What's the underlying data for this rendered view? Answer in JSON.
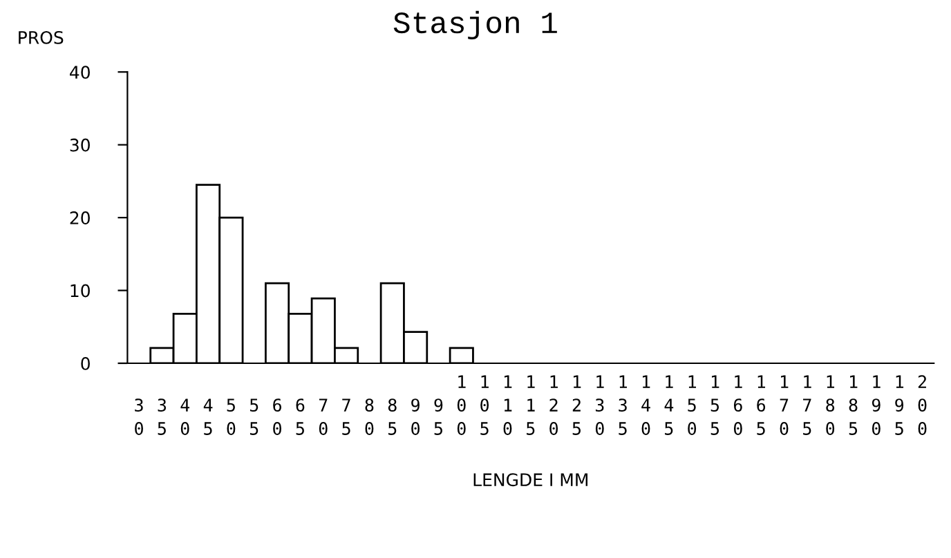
{
  "chart_data": {
    "type": "histogram",
    "title": "Stasjon 1",
    "ylabel": "PROS",
    "xlabel": "LENGDE I MM",
    "bins": [
      27.5,
      32.5,
      37.5,
      42.5,
      47.5,
      52.5,
      57.5,
      62.5,
      67.5,
      72.5,
      77.5,
      82.5,
      87.5,
      92.5,
      97.5,
      102.5,
      107.5,
      112.5,
      117.5,
      122.5,
      127.5,
      132.5,
      137.5,
      142.5,
      147.5,
      152.5,
      157.5,
      162.5,
      167.5,
      172.5,
      177.5,
      182.5,
      187.5,
      192.5,
      197.5,
      202.5
    ],
    "values": [
      0,
      2.1,
      6.8,
      24.5,
      20,
      0,
      11,
      6.8,
      8.9,
      2.1,
      0,
      11,
      4.3,
      0,
      2.1,
      0,
      0,
      0,
      0,
      0,
      0,
      0,
      0,
      0,
      0,
      0,
      0,
      0,
      0,
      0,
      0,
      0,
      0,
      0,
      0
    ],
    "color": "#ffffff",
    "xlim": [
      27.5,
      202.5
    ],
    "xticks": [
      30,
      35,
      40,
      45,
      50,
      55,
      60,
      65,
      70,
      75,
      80,
      85,
      90,
      95,
      100,
      105,
      110,
      115,
      120,
      125,
      130,
      135,
      140,
      145,
      150,
      155,
      160,
      165,
      170,
      175,
      180,
      185,
      190,
      195,
      200
    ],
    "ylim": [
      0,
      40
    ],
    "yticks": [
      0,
      10,
      20,
      30,
      40
    ],
    "grid": false
  }
}
